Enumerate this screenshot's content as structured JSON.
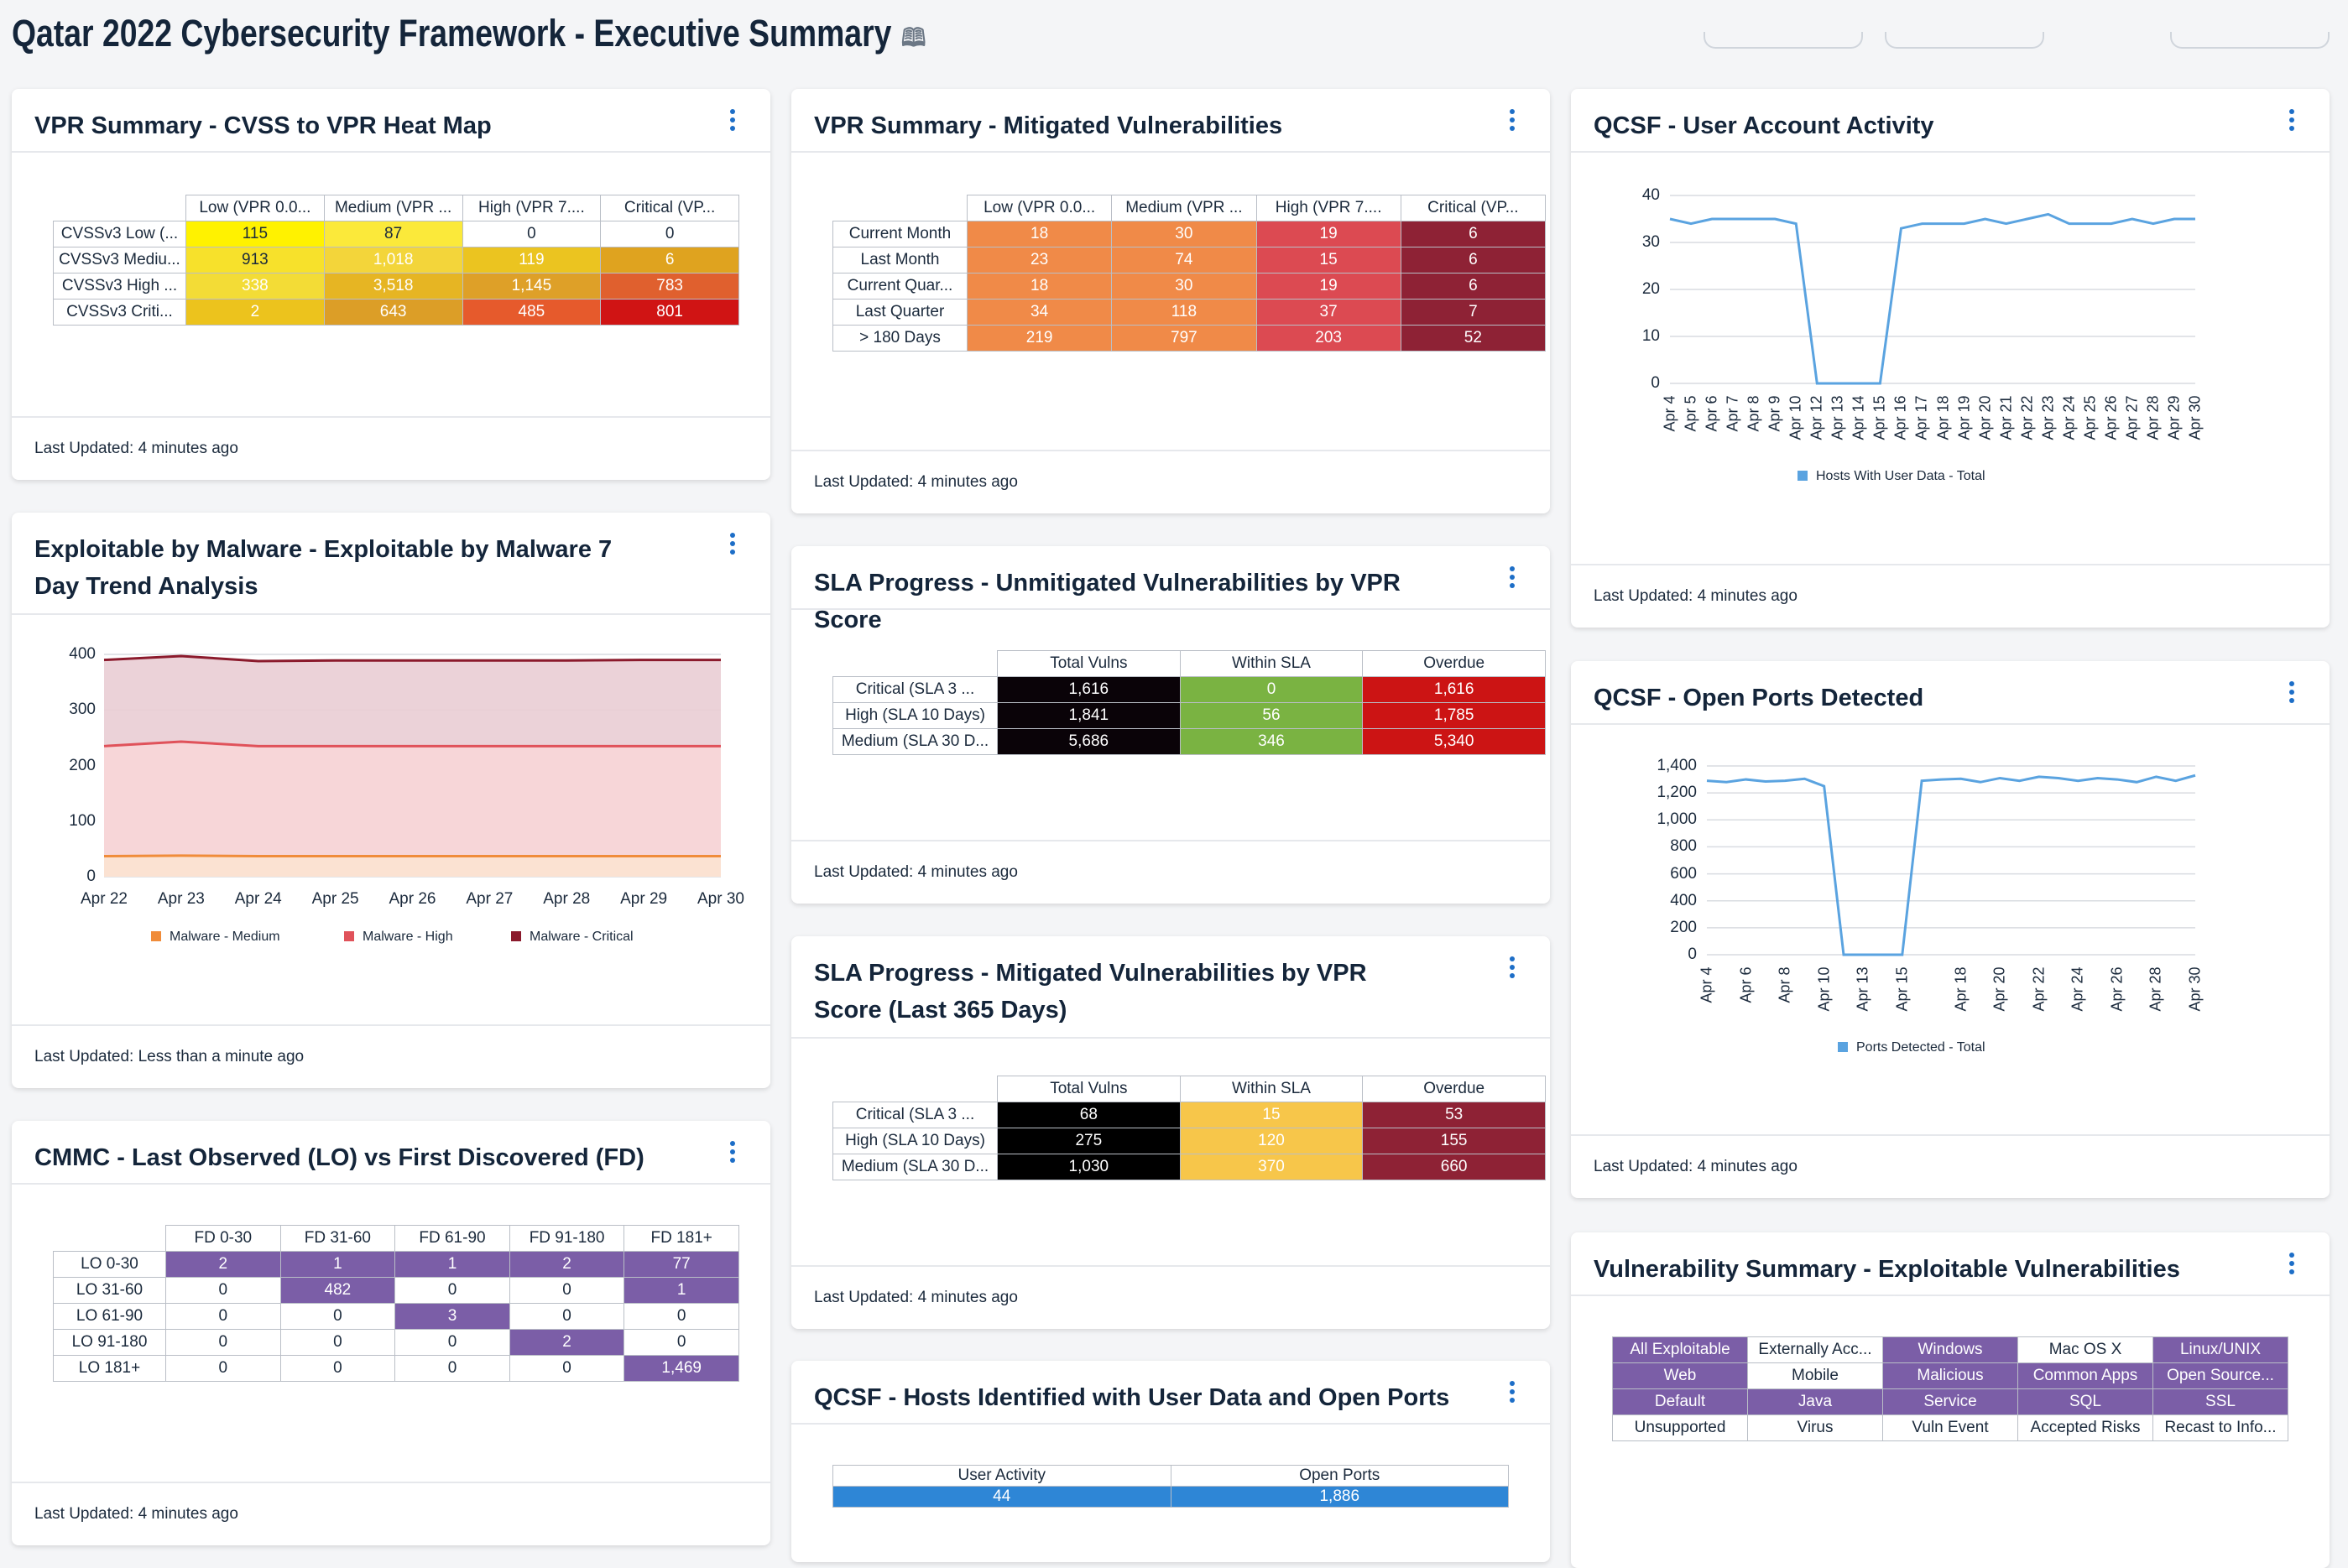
{
  "page": {
    "title": "Qatar 2022 Cybersecurity Framework - Executive Summary",
    "icon": "book-icon"
  },
  "footer_text": {
    "four_min": "Last Updated: 4 minutes ago",
    "less_min": "Last Updated: Less than a minute ago"
  },
  "heatmap": {
    "title": "VPR Summary - CVSS to VPR Heat Map",
    "cols": [
      "Low (VPR 0.0...",
      "Medium (VPR ...",
      "High (VPR 7....",
      "Critical (VP..."
    ],
    "rows": [
      {
        "label": "CVSSv3 Low (...",
        "values": [
          "115",
          "87",
          "0",
          "0"
        ]
      },
      {
        "label": "CVSSv3 Mediu...",
        "values": [
          "913",
          "1,018",
          "119",
          "6"
        ]
      },
      {
        "label": "CVSSv3 High ...",
        "values": [
          "338",
          "3,518",
          "1,145",
          "783"
        ]
      },
      {
        "label": "CVSSv3 Criti...",
        "values": [
          "2",
          "643",
          "485",
          "801"
        ]
      }
    ],
    "footer": "Last Updated: 4 minutes ago"
  },
  "mitigated": {
    "title": "VPR Summary - Mitigated Vulnerabilities",
    "cols": [
      "Low (VPR 0.0...",
      "Medium (VPR ...",
      "High (VPR 7....",
      "Critical (VP..."
    ],
    "rows": [
      {
        "label": "Current Month",
        "values": [
          "18",
          "30",
          "19",
          "6"
        ]
      },
      {
        "label": "Last Month",
        "values": [
          "23",
          "74",
          "15",
          "6"
        ]
      },
      {
        "label": "Current Quar...",
        "values": [
          "18",
          "30",
          "19",
          "6"
        ]
      },
      {
        "label": "Last Quarter",
        "values": [
          "34",
          "118",
          "37",
          "7"
        ]
      },
      {
        "label": "> 180 Days",
        "values": [
          "219",
          "797",
          "203",
          "52"
        ]
      }
    ],
    "footer": "Last Updated: 4 minutes ago"
  },
  "malware": {
    "title": "Exploitable by Malware - Exploitable by Malware 7 Day Trend Analysis",
    "footer": "Last Updated: Less than a minute ago"
  },
  "sla_unmitigated": {
    "title": "SLA Progress - Unmitigated Vulnerabilities by VPR Score",
    "cols": [
      "Total Vulns",
      "Within SLA",
      "Overdue"
    ],
    "rows": [
      {
        "label": "Critical (SLA 3 ...",
        "values": [
          "1,616",
          "0",
          "1,616"
        ]
      },
      {
        "label": "High (SLA 10 Days)",
        "values": [
          "1,841",
          "56",
          "1,785"
        ]
      },
      {
        "label": "Medium (SLA 30 D...",
        "values": [
          "5,686",
          "346",
          "5,340"
        ]
      }
    ],
    "footer": "Last Updated: 4 minutes ago"
  },
  "sla_mitigated": {
    "title": "SLA Progress - Mitigated Vulnerabilities by VPR Score (Last 365 Days)",
    "cols": [
      "Total Vulns",
      "Within SLA",
      "Overdue"
    ],
    "rows": [
      {
        "label": "Critical (SLA 3 ...",
        "values": [
          "68",
          "15",
          "53"
        ]
      },
      {
        "label": "High (SLA 10 Days)",
        "values": [
          "275",
          "120",
          "155"
        ]
      },
      {
        "label": "Medium (SLA 30 D...",
        "values": [
          "1,030",
          "370",
          "660"
        ]
      }
    ],
    "footer": "Last Updated: 4 minutes ago"
  },
  "hosts": {
    "title": "QCSF - Hosts Identified with User Data and Open Ports",
    "cols": [
      "User Activity",
      "Open Ports"
    ],
    "values": [
      "44",
      "1,886"
    ]
  },
  "cmmc": {
    "title": "CMMC - Last Observed (LO) vs First Discovered (FD)",
    "cols": [
      "FD 0-30",
      "FD 31-60",
      "FD 61-90",
      "FD 91-180",
      "FD 181+"
    ],
    "rows": [
      {
        "label": "LO 0-30",
        "values": [
          "2",
          "1",
          "1",
          "2",
          "77"
        ]
      },
      {
        "label": "LO 31-60",
        "values": [
          "0",
          "482",
          "0",
          "0",
          "1"
        ]
      },
      {
        "label": "LO 61-90",
        "values": [
          "0",
          "0",
          "3",
          "0",
          "0"
        ]
      },
      {
        "label": "LO 91-180",
        "values": [
          "0",
          "0",
          "0",
          "2",
          "0"
        ]
      },
      {
        "label": "LO 181+",
        "values": [
          "0",
          "0",
          "0",
          "0",
          "1,469"
        ]
      }
    ],
    "footer": "Last Updated: 4 minutes ago"
  },
  "user_activity": {
    "title": "QCSF - User Account Activity",
    "footer": "Last Updated: 4 minutes ago"
  },
  "open_ports": {
    "title": "QCSF - Open Ports Detected",
    "footer": "Last Updated: 4 minutes ago"
  },
  "vuln_summary": {
    "title": "Vulnerability Summary - Exploitable Vulnerabilities",
    "rows": [
      [
        "All Exploitable",
        "Externally Acc...",
        "Windows",
        "Mac OS X",
        "Linux/UNIX"
      ],
      [
        "Web",
        "Mobile",
        "Malicious",
        "Common Apps",
        "Open Source..."
      ],
      [
        "Default",
        "Java",
        "Service",
        "SQL",
        "SSL"
      ],
      [
        "Unsupported",
        "Virus",
        "Vuln Event",
        "Accepted Risks",
        "Recast to Info..."
      ]
    ]
  },
  "chart_data": [
    {
      "type": "area",
      "title": "Exploitable by Malware 7 Day Trend Analysis",
      "categories": [
        "Apr 22",
        "Apr 23",
        "Apr 24",
        "Apr 25",
        "Apr 26",
        "Apr 27",
        "Apr 28",
        "Apr 29",
        "Apr 30"
      ],
      "ylim": [
        0,
        400
      ],
      "yticks": [
        "0",
        "100",
        "200",
        "300",
        "400"
      ],
      "series": [
        {
          "name": "Malware - Medium",
          "color": "#f08c3a",
          "values": [
            37,
            38,
            37,
            37,
            37,
            37,
            37,
            37,
            37
          ]
        },
        {
          "name": "Malware - High",
          "color": "#e0525a",
          "values": [
            235,
            243,
            235,
            235,
            235,
            235,
            235,
            235,
            235
          ]
        },
        {
          "name": "Malware - Critical",
          "color": "#8b1a2c",
          "values": [
            390,
            397,
            388,
            389,
            389,
            389,
            389,
            390,
            390
          ]
        }
      ]
    },
    {
      "type": "line",
      "title": "QCSF - User Account Activity",
      "categories": [
        "Apr 4",
        "Apr 5",
        "Apr 6",
        "Apr 7",
        "Apr 8",
        "Apr 9",
        "Apr 10",
        "Apr 12",
        "Apr 13",
        "Apr 14",
        "Apr 15",
        "Apr 16",
        "Apr 17",
        "Apr 18",
        "Apr 19",
        "Apr 20",
        "Apr 21",
        "Apr 22",
        "Apr 23",
        "Apr 24",
        "Apr 25",
        "Apr 26",
        "Apr 27",
        "Apr 28",
        "Apr 29",
        "Apr 30"
      ],
      "ylim": [
        0,
        40
      ],
      "yticks": [
        "0",
        "10",
        "20",
        "30",
        "40"
      ],
      "series": [
        {
          "name": "Hosts With User Data - Total",
          "color": "#5aa3e0",
          "values": [
            35,
            34,
            35,
            35,
            35,
            35,
            34,
            0,
            0,
            0,
            0,
            33,
            34,
            34,
            34,
            35,
            34,
            35,
            36,
            34,
            34,
            34,
            35,
            34,
            35,
            35
          ]
        }
      ]
    },
    {
      "type": "line",
      "title": "QCSF - Open Ports Detected",
      "categories": [
        "Apr 4",
        "Apr 5",
        "Apr 6",
        "Apr 7",
        "Apr 8",
        "Apr 9",
        "Apr 10",
        "Apr 12",
        "Apr 13",
        "Apr 14",
        "Apr 15",
        "Apr 16",
        "Apr 17",
        "Apr 18",
        "Apr 19",
        "Apr 20",
        "Apr 21",
        "Apr 22",
        "Apr 23",
        "Apr 24",
        "Apr 25",
        "Apr 26",
        "Apr 27",
        "Apr 28",
        "Apr 29",
        "Apr 30"
      ],
      "xtick_labels": [
        "Apr 4",
        "Apr 6",
        "Apr 8",
        "Apr 10",
        "Apr 13",
        "Apr 15",
        "Apr 18",
        "Apr 20",
        "Apr 22",
        "Apr 24",
        "Apr 26",
        "Apr 28",
        "Apr 30"
      ],
      "ylim": [
        0,
        1400
      ],
      "yticks": [
        "0",
        "200",
        "400",
        "600",
        "800",
        "1,000",
        "1,200",
        "1,400"
      ],
      "series": [
        {
          "name": "Ports Detected - Total",
          "color": "#5aa3e0",
          "values": [
            1290,
            1280,
            1300,
            1285,
            1290,
            1305,
            1250,
            0,
            0,
            0,
            0,
            1290,
            1300,
            1305,
            1280,
            1310,
            1290,
            1320,
            1310,
            1290,
            1310,
            1300,
            1280,
            1320,
            1290,
            1330
          ]
        }
      ]
    }
  ]
}
